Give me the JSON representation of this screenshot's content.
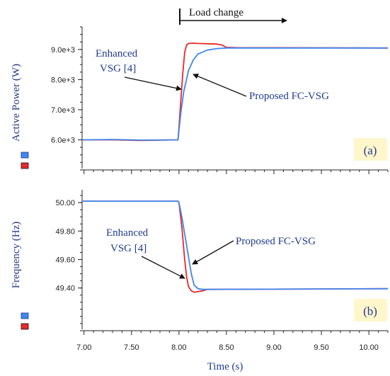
{
  "colors": {
    "enhanced": "#e8282a",
    "proposed": "#3f86f0",
    "label": "#1f3b8f",
    "tag_bg": "#fff6cc"
  },
  "load_change_label": "Load change",
  "xlabel": "Time (s)",
  "x_ticks": [
    "7.00",
    "7.50",
    "8.00",
    "8.50",
    "9.00",
    "9.50",
    "10.00"
  ],
  "chart_data": [
    {
      "type": "line",
      "panel_tag": "(a)",
      "ylabel": "Active Power (W)",
      "xlim": [
        6.98,
        10.2
      ],
      "ylim": [
        5000,
        9750
      ],
      "y_ticks": [
        6000,
        7000,
        8000,
        9000
      ],
      "y_tick_labels": [
        "6.0e+3",
        "7.0e+3",
        "8.0e+3",
        "9.0e+3"
      ],
      "annotations": [
        {
          "lines": [
            "Enhanced",
            "VSG [4]"
          ]
        },
        {
          "lines": [
            "Proposed FC-VSG"
          ]
        }
      ],
      "series": [
        {
          "name": "Enhanced VSG [4]",
          "color_key": "enhanced",
          "x": [
            6.98,
            7.3,
            7.6,
            7.99,
            8.0,
            8.02,
            8.04,
            8.06,
            8.08,
            8.1,
            8.15,
            8.2,
            8.3,
            8.4,
            8.45,
            8.5,
            8.6,
            10.2
          ],
          "y": [
            6000,
            6000,
            5980,
            6000,
            6400,
            7300,
            8200,
            8900,
            9150,
            9200,
            9210,
            9200,
            9190,
            9180,
            9150,
            9070,
            9060,
            9050
          ]
        },
        {
          "name": "Proposed FC-VSG",
          "color_key": "proposed",
          "x": [
            6.98,
            7.3,
            7.6,
            7.99,
            8.0,
            8.02,
            8.05,
            8.1,
            8.15,
            8.2,
            8.3,
            8.4,
            8.5,
            10.2
          ],
          "y": [
            6000,
            6010,
            5990,
            6000,
            6300,
            6900,
            7600,
            8300,
            8650,
            8850,
            8980,
            9030,
            9050,
            9050
          ]
        }
      ]
    },
    {
      "type": "line",
      "panel_tag": "(b)",
      "ylabel": "Frequency (Hz)",
      "xlim": [
        6.98,
        10.2
      ],
      "ylim": [
        49.1,
        50.09
      ],
      "y_ticks": [
        49.4,
        49.6,
        49.8,
        50.0
      ],
      "y_tick_labels": [
        "49.40",
        "49.60",
        "49.80",
        "50.00"
      ],
      "annotations": [
        {
          "lines": [
            "Enhanced",
            "VSG [4]"
          ]
        },
        {
          "lines": [
            "Proposed FC-VSG"
          ]
        }
      ],
      "series": [
        {
          "name": "Enhanced VSG [4]",
          "color_key": "enhanced",
          "x": [
            6.98,
            7.5,
            7.99,
            8.0,
            8.03,
            8.06,
            8.08,
            8.1,
            8.13,
            8.16,
            8.2,
            8.25,
            8.3,
            10.2
          ],
          "y": [
            50.01,
            50.01,
            50.01,
            50.0,
            49.83,
            49.6,
            49.48,
            49.41,
            49.38,
            49.37,
            49.375,
            49.38,
            49.39,
            49.395
          ]
        },
        {
          "name": "Proposed FC-VSG",
          "color_key": "proposed",
          "x": [
            6.98,
            7.5,
            7.99,
            8.0,
            8.03,
            8.06,
            8.1,
            8.13,
            8.16,
            8.2,
            8.25,
            8.3,
            10.2
          ],
          "y": [
            50.01,
            50.01,
            50.01,
            50.0,
            49.9,
            49.78,
            49.62,
            49.5,
            49.42,
            49.395,
            49.39,
            49.39,
            49.395
          ]
        }
      ]
    }
  ]
}
